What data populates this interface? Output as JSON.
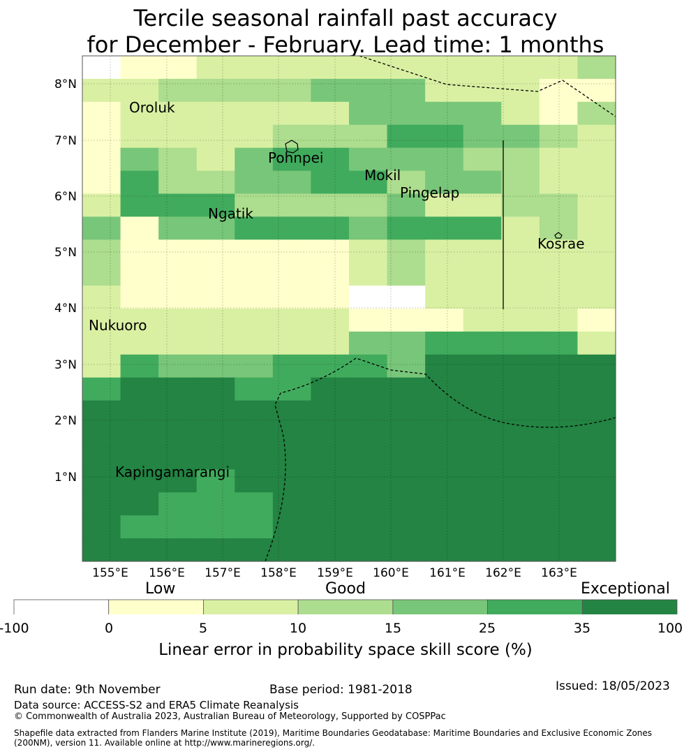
{
  "title": {
    "line1": "Tercile seasonal rainfall past accuracy",
    "line2": "for December - February. Lead time: 1 months"
  },
  "map": {
    "lon_labels": [
      "155°E",
      "156°E",
      "157°E",
      "158°E",
      "159°E",
      "160°E",
      "161°E",
      "162°E",
      "163°E"
    ],
    "lat_labels": [
      "8°N",
      "7°N",
      "6°N",
      "5°N",
      "4°N",
      "3°N",
      "2°N",
      "1°N"
    ],
    "places": [
      "Oroluk",
      "Pohnpei",
      "Mokil",
      "Pingelap",
      "Ngatik",
      "Kosrae",
      "Nukuoro",
      "Kapingamarangi"
    ],
    "grid_rows": [
      "01122222222223",
      "22333344422211",
      "12222224444213",
      "12222333554432",
      "14324554443322",
      "15334455344322",
      "25553333422332",
      "41445554555232",
      "31111112322222",
      "31111112322222",
      "21111110022222",
      "22222221112221",
      "22222224455552",
      "25444555466666",
      "56665566666666",
      "66666666666666",
      "66666666666666",
      "66666666666666",
      "66656666666666",
      "66555666666666",
      "65555666666666",
      "66666666666666"
    ]
  },
  "legend": {
    "low": "Low",
    "good": "Good",
    "exceptional": "Exceptional",
    "ticks": [
      "-100",
      "0",
      "5",
      "10",
      "15",
      "25",
      "35",
      "100"
    ],
    "colors": [
      "#ffffff",
      "#ffffcc",
      "#d9f0a3",
      "#addd8e",
      "#78c679",
      "#41ab5d",
      "#238443"
    ],
    "label": "Linear error in probability space skill score (%)"
  },
  "footer": {
    "run_date": "Run date: 9th November",
    "base_period": "Base period: 1981-2018",
    "issued": "Issued: 18/05/2023",
    "data_source": "Data source: ACCESS-S2 and ERA5 Climate Reanalysis",
    "copyright": "© Commonwealth of Australia 2023, Australian Bureau of Meteorology, Supported by COSPPac",
    "shapefile_1": "Shapefile data extracted from Flanders Marine Institute (2019), Maritime Boundaries Geodatabase: Maritime Boundaries and Exclusive Economic Zones",
    "shapefile_2": "(200NM), version 11. Available online at http://www.marineregions.org/."
  }
}
